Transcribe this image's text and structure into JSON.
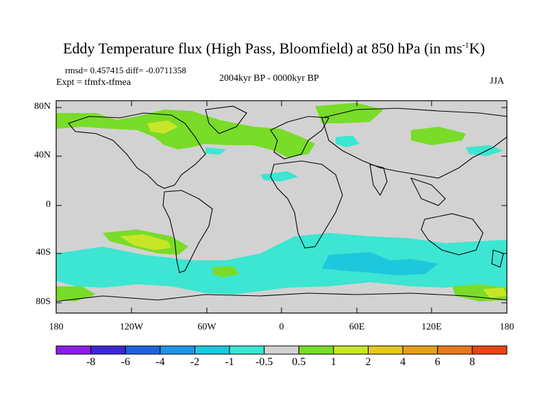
{
  "title_main": "Eddy Temperature flux (High Pass, Bloomfield) at 850 hPa (in ms",
  "title_sup": "-1",
  "title_end": "K)",
  "stats": "rmsd= 0.457415 diff= -0.0711358",
  "expt": "Expt = tfmfx-tfmea",
  "period": "2004kyr BP - 0000kyr BP",
  "season": "JJA",
  "y_labels": [
    "80N",
    "40N",
    "0",
    "40S",
    "80S"
  ],
  "x_labels": [
    "180",
    "120W",
    "60W",
    "0",
    "60E",
    "120E",
    "180"
  ],
  "colorbar": {
    "labels": [
      "-8",
      "-6",
      "-4",
      "-2",
      "-1",
      "-0.5",
      "0.5",
      "1",
      "2",
      "4",
      "6",
      "8"
    ],
    "colors": [
      "#8c1ee6",
      "#3c28d2",
      "#1e64dc",
      "#1e96e6",
      "#1ec8dc",
      "#3ce6d2",
      "#d2d2d2",
      "#78dc28",
      "#c8e628",
      "#e6c81e",
      "#e6a01e",
      "#e6781e",
      "#e64614"
    ]
  },
  "colors": {
    "background": "#d2d2d2",
    "green": "#78dc28",
    "yellow": "#c8e628",
    "cyan": "#3ce6d2",
    "blue": "#1ec8dc"
  }
}
